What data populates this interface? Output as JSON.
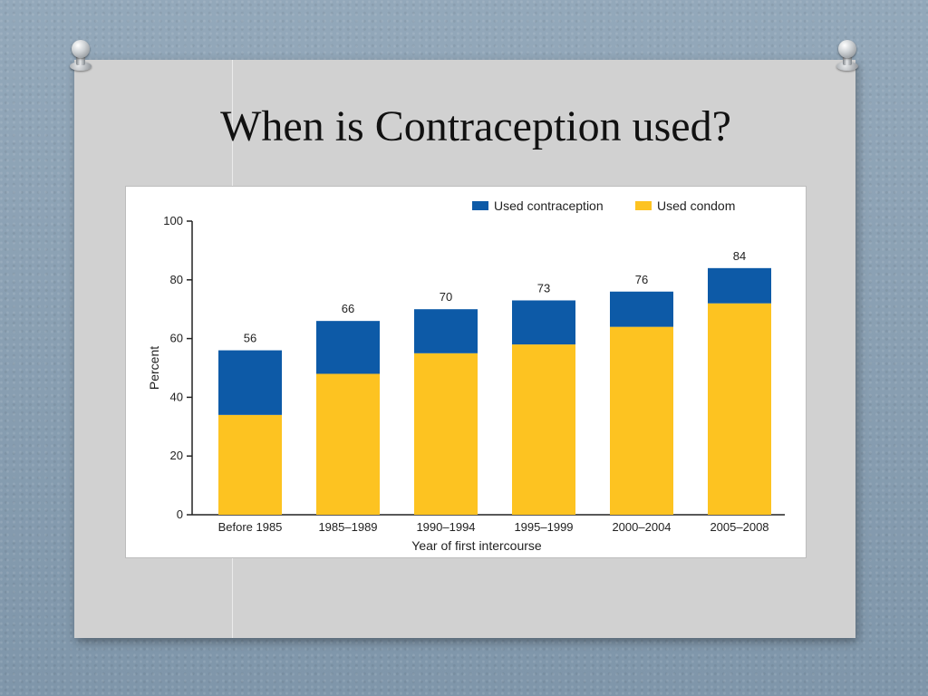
{
  "slide": {
    "title": "When is Contraception used?"
  },
  "chart_data": {
    "type": "bar",
    "stacked": true,
    "categories": [
      "Before 1985",
      "1985–1989",
      "1990–1994",
      "1995–1999",
      "2000–2004",
      "2005–2008"
    ],
    "series": [
      {
        "name": "Used condom",
        "color": "#fdc321",
        "values": [
          34,
          48,
          55,
          58,
          64,
          72
        ]
      },
      {
        "name": "Used contraception",
        "color": "#0d5aa7",
        "values": [
          22,
          18,
          15,
          15,
          12,
          12
        ]
      }
    ],
    "totals": [
      56,
      66,
      70,
      73,
      76,
      84
    ],
    "legend_order": [
      "Used contraception",
      "Used condom"
    ],
    "legend_position": "top-right",
    "xlabel": "Year of first intercourse",
    "ylabel": "Percent",
    "ylim": [
      0,
      100
    ],
    "yticks": [
      0,
      20,
      40,
      60,
      80,
      100
    ],
    "grid": false
  }
}
